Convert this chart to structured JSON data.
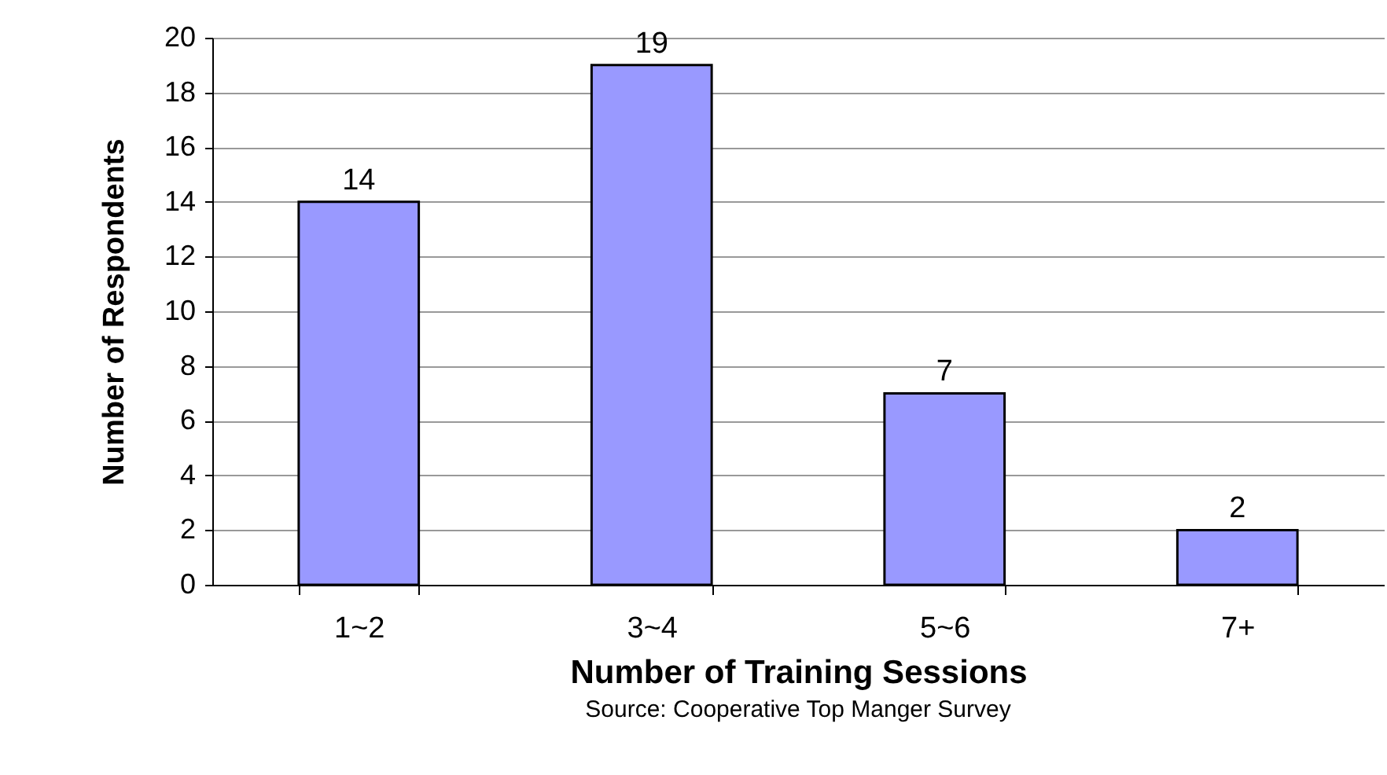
{
  "chart_data": {
    "type": "bar",
    "xlabel": "Number of Training Sessions",
    "ylabel": "Number of Respondents",
    "categories": [
      "1~2",
      "3~4",
      "5~6",
      "7+"
    ],
    "values": [
      14,
      19,
      7,
      2
    ],
    "color": "#9999ff",
    "ylim": [
      0,
      20
    ],
    "yticks": [
      0,
      2,
      4,
      6,
      8,
      10,
      12,
      14,
      16,
      18,
      20
    ],
    "grid": "y",
    "data_labels": true,
    "annotations": [
      "Source: Cooperative Top Manger Survey"
    ]
  }
}
